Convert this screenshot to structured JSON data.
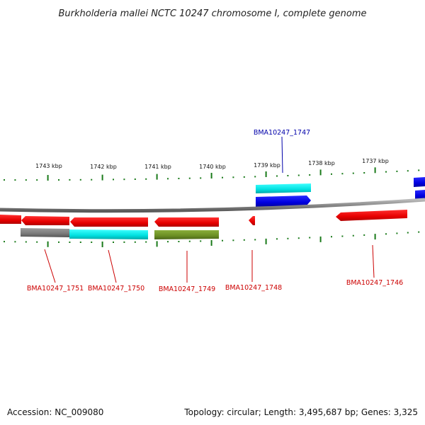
{
  "title": "Burkholderia mallei NCTC 10247 chromosome I, complete genome",
  "ruler_labels": [
    "1743 kbp",
    "1742 kbp",
    "1741 kbp",
    "1740 kbp",
    "1739 kbp",
    "1738 kbp",
    "1737 kbp"
  ],
  "gene_labels": [
    {
      "name": "BMA10247_1747",
      "color": "#0000aa",
      "side": "top"
    },
    {
      "name": "BMA10247_1751",
      "color": "#cc0000",
      "side": "bottom"
    },
    {
      "name": "BMA10247_1750",
      "color": "#cc0000",
      "side": "bottom"
    },
    {
      "name": "BMA10247_1749",
      "color": "#cc0000",
      "side": "bottom"
    },
    {
      "name": "BMA10247_1748",
      "color": "#cc0000",
      "side": "bottom"
    },
    {
      "name": "BMA10247_1746",
      "color": "#cc0000",
      "side": "bottom"
    }
  ],
  "colors": {
    "forward_cds": "#0000ee",
    "reverse_cds": "#ee0000",
    "rna_cyan": "#00e5e5",
    "olive": "#6b8e23",
    "gray": "#808080",
    "backbone": "#888888",
    "ticks": "#1a7a1a"
  },
  "footer": {
    "accession": "Accession: NC_009080",
    "stats": "Topology: circular; Length: 3,495,687 bp; Genes: 3,325"
  }
}
